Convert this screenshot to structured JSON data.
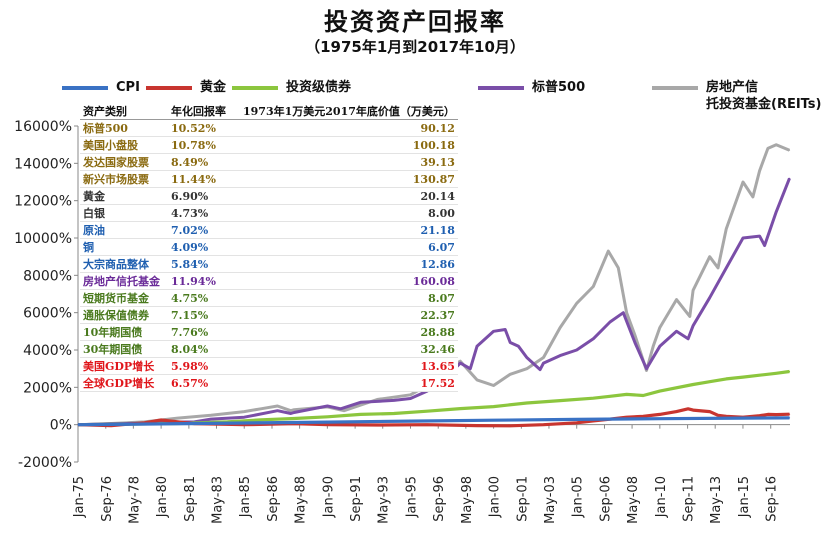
{
  "chart_data": {
    "type": "line",
    "title": "投资资产回报率",
    "subtitle": "（1975年1月到2017年10月）",
    "xlabel": "",
    "ylabel": "",
    "xlim": [
      1975.0,
      2017.83
    ],
    "ylim": [
      -2000,
      16000
    ],
    "y_tick_labels": [
      "-2000%",
      "0%",
      "2000%",
      "4000%",
      "6000%",
      "8000%",
      "10000%",
      "12000%",
      "14000%",
      "16000%"
    ],
    "y_tick_values": [
      -2000,
      0,
      2000,
      4000,
      6000,
      8000,
      10000,
      12000,
      14000,
      16000
    ],
    "x_tick_labels": [
      "Jan-75",
      "Sep-76",
      "May-78",
      "Jan-80",
      "Sep-81",
      "May-83",
      "Jan-85",
      "Sep-86",
      "May-88",
      "Jan-90",
      "Sep-91",
      "May-93",
      "Jan-95",
      "Sep-96",
      "May-98",
      "Jan-00",
      "Sep-01",
      "May-03",
      "Jan-05",
      "Sep-06",
      "May-08",
      "Jan-10",
      "Sep-11",
      "May-13",
      "Jan-15",
      "Sep-16"
    ],
    "x_tick_values": [
      1975.0,
      1976.67,
      1978.33,
      1980.0,
      1981.67,
      1983.33,
      1985.0,
      1986.67,
      1988.33,
      1990.0,
      1991.67,
      1993.33,
      1995.0,
      1996.67,
      1998.33,
      2000.0,
      2001.67,
      2003.33,
      2005.0,
      2006.67,
      2008.33,
      2010.0,
      2011.67,
      2013.33,
      2015.0,
      2016.67
    ],
    "grid": false,
    "legend_position": "top",
    "series": [
      {
        "name": "CPI",
        "color": "#3a72c4",
        "x": [
          1975,
          1980,
          1985,
          1990,
          1995,
          2000,
          2005,
          2010,
          2015,
          2017.8
        ],
        "y": [
          0,
          40,
          90,
          140,
          190,
          240,
          280,
          320,
          350,
          360
        ]
      },
      {
        "name": "黄金",
        "color": "#c8352f",
        "x": [
          1975,
          1977,
          1979,
          1980,
          1982,
          1985,
          1988,
          1990,
          1993,
          1996,
          1999,
          2001,
          2003,
          2005,
          2006,
          2007,
          2008,
          2009,
          2010,
          2011,
          2011.7,
          2012,
          2013,
          2013.5,
          2014,
          2015,
          2016,
          2016.5,
          2017,
          2017.8
        ],
        "y": [
          0,
          -50,
          100,
          250,
          50,
          0,
          50,
          0,
          -20,
          0,
          -50,
          -60,
          0,
          100,
          200,
          300,
          400,
          450,
          550,
          700,
          850,
          780,
          700,
          500,
          450,
          400,
          480,
          550,
          540,
          560
        ]
      },
      {
        "name": "投资级债券",
        "color": "#8cc63e",
        "x": [
          1975,
          1978,
          1981,
          1984,
          1986,
          1988,
          1990,
          1992,
          1994,
          1996,
          1998,
          2000,
          2002,
          2004,
          2006,
          2007,
          2008,
          2009,
          2010,
          2012,
          2013,
          2014,
          2015,
          2016,
          2017,
          2017.8
        ],
        "y": [
          0,
          30,
          60,
          150,
          260,
          330,
          420,
          550,
          600,
          720,
          860,
          970,
          1160,
          1290,
          1420,
          1520,
          1620,
          1560,
          1800,
          2150,
          2300,
          2450,
          2550,
          2650,
          2750,
          2850
        ]
      },
      {
        "name": "标普500",
        "color": "#7a4ea8",
        "x": [
          1975,
          1977,
          1979,
          1980,
          1982,
          1983,
          1985,
          1987,
          1987.8,
          1988,
          1990,
          1990.8,
          1992,
          1994,
          1995,
          1996,
          1997,
          1998,
          1998.6,
          1999,
          2000,
          2000.7,
          2001,
          2001.5,
          2002,
          2002.8,
          2003,
          2004,
          2005,
          2006,
          2007,
          2007.8,
          2008.5,
          2009.2,
          2010,
          2011,
          2011.7,
          2012,
          2013,
          2014,
          2015,
          2016,
          2016.3,
          2017,
          2017.8
        ],
        "y": [
          0,
          50,
          80,
          120,
          150,
          300,
          400,
          750,
          600,
          650,
          1000,
          850,
          1200,
          1300,
          1400,
          1800,
          2400,
          3300,
          3000,
          4200,
          5000,
          5100,
          4400,
          4200,
          3600,
          2950,
          3300,
          3700,
          4000,
          4600,
          5500,
          6000,
          4400,
          3000,
          4200,
          5000,
          4600,
          5300,
          6800,
          8400,
          10000,
          10100,
          9600,
          11400,
          13200
        ]
      },
      {
        "name": "房地产信托投资基金(REITs)",
        "color": "#a8a8a8",
        "x": [
          1975,
          1977,
          1979,
          1981,
          1983,
          1985,
          1986,
          1987,
          1987.8,
          1988,
          1990,
          1991,
          1992,
          1993,
          1995,
          1996,
          1997,
          1998,
          1999,
          2000,
          2001,
          2002,
          2003,
          2004,
          2005,
          2006,
          2006.9,
          2007.5,
          2008,
          2008.5,
          2009.2,
          2009.6,
          2010,
          2011,
          2011.8,
          2012,
          2013,
          2013.5,
          2014,
          2015,
          2015.6,
          2016,
          2016.5,
          2017,
          2017.8
        ],
        "y": [
          0,
          60,
          150,
          350,
          500,
          700,
          850,
          1000,
          750,
          800,
          950,
          750,
          1050,
          1350,
          1600,
          2100,
          2900,
          3400,
          2400,
          2100,
          2700,
          3000,
          3600,
          5200,
          6500,
          7400,
          9300,
          8400,
          6000,
          4800,
          2900,
          4200,
          5200,
          6700,
          5800,
          7200,
          9000,
          8400,
          10500,
          13000,
          12200,
          13600,
          14800,
          15000,
          14700
        ]
      }
    ]
  },
  "legend": [
    {
      "label": "CPI",
      "color": "#3a72c4"
    },
    {
      "label": "黄金",
      "color": "#c8352f"
    },
    {
      "label": "投资级债券",
      "color": "#8cc63e"
    },
    {
      "label": "标普500",
      "color": "#7a4ea8"
    },
    {
      "label_line1": "房地产信",
      "label_line2": "托投资基金(REITs)",
      "color": "#a8a8a8"
    }
  ],
  "table": {
    "headers": [
      "资产类别",
      "年化回报率",
      "1973年1万美元2017年底价值（万美元）"
    ],
    "rows": [
      {
        "name": "标普500",
        "rate": "10.52%",
        "value": "90.12",
        "group": "gold"
      },
      {
        "name": "美国小盘股",
        "rate": "10.78%",
        "value": "100.18",
        "group": "gold"
      },
      {
        "name": "发达国家股票",
        "rate": "8.49%",
        "value": "39.13",
        "group": "gold"
      },
      {
        "name": "新兴市场股票",
        "rate": "11.44%",
        "value": "130.87",
        "group": "gold"
      },
      {
        "name": "黄金",
        "rate": "6.90%",
        "value": "20.14",
        "group": "dark"
      },
      {
        "name": "白银",
        "rate": "4.73%",
        "value": "8.00",
        "group": "dark"
      },
      {
        "name": "原油",
        "rate": "7.02%",
        "value": "21.18",
        "group": "blue"
      },
      {
        "name": "铜",
        "rate": "4.09%",
        "value": "6.07",
        "group": "blue"
      },
      {
        "name": "大宗商品整体",
        "rate": "5.84%",
        "value": "12.86",
        "group": "blue"
      },
      {
        "name": "房地产信托基金",
        "rate": "11.94%",
        "value": "160.08",
        "group": "purple"
      },
      {
        "name": "短期货币基金",
        "rate": "4.75%",
        "value": "8.07",
        "group": "green"
      },
      {
        "name": "通胀保值债券",
        "rate": "7.15%",
        "value": "22.37",
        "group": "green"
      },
      {
        "name": "10年期国债",
        "rate": "7.76%",
        "value": "28.88",
        "group": "green"
      },
      {
        "name": "30年期国债",
        "rate": "8.04%",
        "value": "32.46",
        "group": "green"
      },
      {
        "name": "美国GDP增长",
        "rate": "5.98%",
        "value": "13.65",
        "group": "red"
      },
      {
        "name": "全球GDP增长",
        "rate": "6.57%",
        "value": "17.52",
        "group": "red"
      }
    ]
  }
}
